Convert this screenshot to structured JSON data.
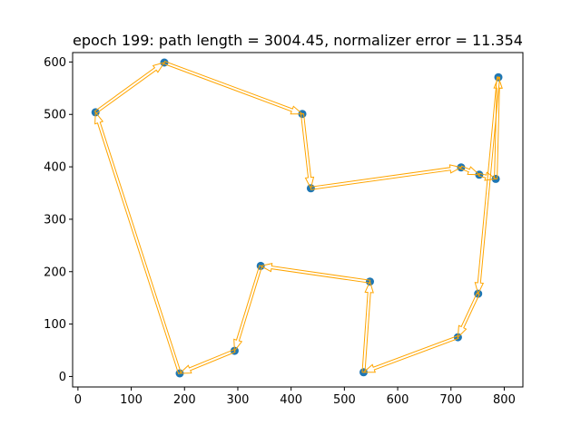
{
  "chart_data": {
    "type": "scatter",
    "title": "epoch 199: path length = 3004.45, normalizer error = 11.354",
    "xlabel": "",
    "ylabel": "",
    "xlim": [
      -10,
      835
    ],
    "ylim": [
      -20,
      618
    ],
    "grid": false,
    "x_ticks": [
      0,
      100,
      200,
      300,
      400,
      500,
      600,
      700,
      800
    ],
    "y_ticks": [
      0,
      100,
      200,
      300,
      400,
      500,
      600
    ],
    "x_tick_labels": [
      "0",
      "100",
      "200",
      "300",
      "400",
      "500",
      "600",
      "700",
      "800"
    ],
    "y_tick_labels": [
      "0",
      "100",
      "200",
      "300",
      "400",
      "500",
      "600"
    ],
    "points": [
      {
        "x": 33,
        "y": 504
      },
      {
        "x": 162,
        "y": 599
      },
      {
        "x": 421,
        "y": 501
      },
      {
        "x": 437,
        "y": 359
      },
      {
        "x": 719,
        "y": 399
      },
      {
        "x": 753,
        "y": 385
      },
      {
        "x": 784,
        "y": 377
      },
      {
        "x": 789,
        "y": 571
      },
      {
        "x": 751,
        "y": 158
      },
      {
        "x": 713,
        "y": 75
      },
      {
        "x": 536,
        "y": 8
      },
      {
        "x": 548,
        "y": 181
      },
      {
        "x": 343,
        "y": 211
      },
      {
        "x": 294,
        "y": 49
      },
      {
        "x": 191,
        "y": 6
      }
    ],
    "path_order": [
      0,
      1,
      2,
      3,
      4,
      5,
      6,
      7,
      8,
      9,
      10,
      11,
      12,
      13,
      14,
      0
    ],
    "colors": {
      "points": "#1f77b4",
      "arrows": "#ffa500",
      "axes": "#000000"
    }
  }
}
